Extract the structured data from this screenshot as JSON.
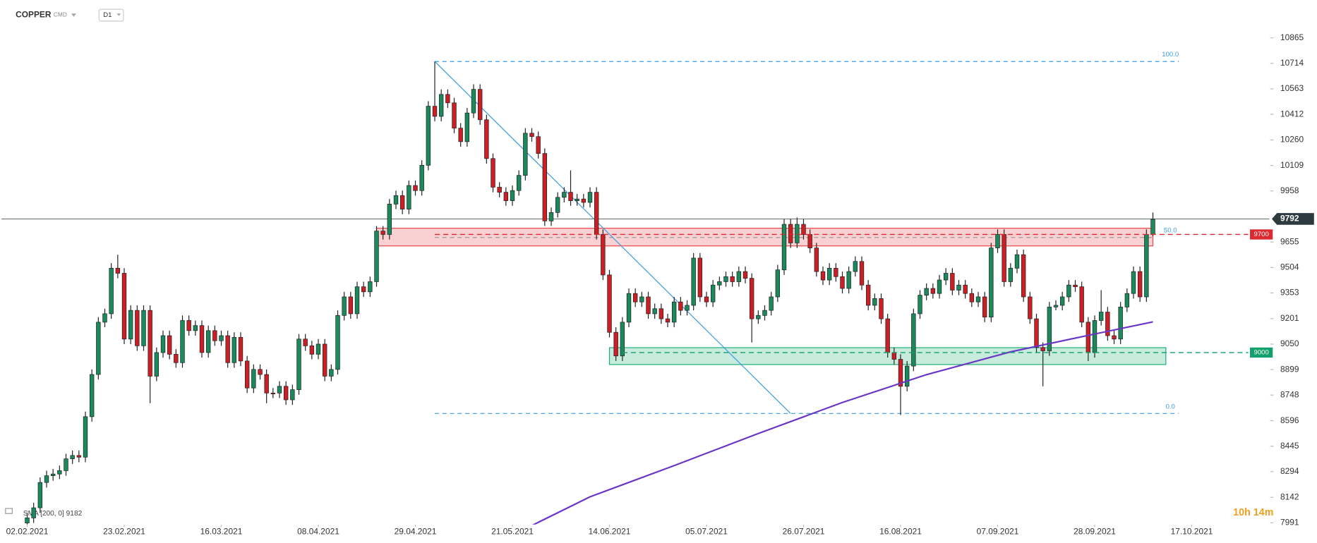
{
  "chart_data": {
    "type": "candlestick",
    "title": "COPPER",
    "market": "CMD",
    "timeframe": "D1",
    "countdown": "10h 14m",
    "up_color": "#1a8a5c",
    "down_color": "#cc1f25",
    "xlim": [
      -4,
      192
    ],
    "ylim": [
      7991,
      10865
    ],
    "xticks": [
      {
        "value": 0,
        "label": "02.02.2021"
      },
      {
        "value": 15,
        "label": "23.02.2021"
      },
      {
        "value": 30,
        "label": "16.03.2021"
      },
      {
        "value": 45,
        "label": "08.04.2021"
      },
      {
        "value": 60,
        "label": "29.04.2021"
      },
      {
        "value": 75,
        "label": "21.05.2021"
      },
      {
        "value": 90,
        "label": "14.06.2021"
      },
      {
        "value": 105,
        "label": "05.07.2021"
      },
      {
        "value": 120,
        "label": "26.07.2021"
      },
      {
        "value": 135,
        "label": "16.08.2021"
      },
      {
        "value": 150,
        "label": "07.09.2021"
      },
      {
        "value": 165,
        "label": "28.09.2021"
      },
      {
        "value": 180,
        "label": "17.10.2021"
      }
    ],
    "yticks": [
      10865,
      10714,
      10563,
      10412,
      10260,
      10109,
      9958,
      9655,
      9504,
      9353,
      9201,
      9050,
      8899,
      8748,
      8596,
      8445,
      8294,
      8142,
      7991
    ],
    "ohlc": [
      [
        7990,
        8050,
        7960,
        8020
      ],
      [
        8020,
        8110,
        7990,
        8080
      ],
      [
        8080,
        8260,
        8050,
        8230
      ],
      [
        8230,
        8300,
        8200,
        8270
      ],
      [
        8270,
        8310,
        8240,
        8280
      ],
      [
        8280,
        8330,
        8250,
        8300
      ],
      [
        8300,
        8400,
        8270,
        8370
      ],
      [
        8370,
        8420,
        8340,
        8390
      ],
      [
        8390,
        8420,
        8350,
        8380
      ],
      [
        8380,
        8650,
        8350,
        8620
      ],
      [
        8620,
        8900,
        8590,
        8870
      ],
      [
        8870,
        9210,
        8840,
        9180
      ],
      [
        9180,
        9260,
        9150,
        9230
      ],
      [
        9230,
        9530,
        9200,
        9500
      ],
      [
        9500,
        9580,
        9440,
        9470
      ],
      [
        9470,
        9500,
        9050,
        9080
      ],
      [
        9080,
        9280,
        9050,
        9250
      ],
      [
        9250,
        9280,
        9010,
        9040
      ],
      [
        9040,
        9280,
        9010,
        9250
      ],
      [
        9250,
        9280,
        8700,
        8860
      ],
      [
        8860,
        9030,
        8830,
        9000
      ],
      [
        9000,
        9130,
        8970,
        9100
      ],
      [
        9100,
        9130,
        8960,
        8990
      ],
      [
        8990,
        9020,
        8910,
        8940
      ],
      [
        8940,
        9220,
        8910,
        9190
      ],
      [
        9190,
        9220,
        9100,
        9130
      ],
      [
        9130,
        9190,
        9100,
        9160
      ],
      [
        9160,
        9190,
        8970,
        9000
      ],
      [
        9000,
        9160,
        8970,
        9130
      ],
      [
        9130,
        9160,
        9040,
        9070
      ],
      [
        9070,
        9130,
        9040,
        9100
      ],
      [
        9100,
        9130,
        8910,
        8940
      ],
      [
        8940,
        9120,
        8910,
        9090
      ],
      [
        9090,
        9120,
        8920,
        8950
      ],
      [
        8950,
        8980,
        8760,
        8790
      ],
      [
        8790,
        8930,
        8760,
        8900
      ],
      [
        8900,
        8930,
        8840,
        8870
      ],
      [
        8870,
        8900,
        8700,
        8760
      ],
      [
        8760,
        8790,
        8730,
        8760
      ],
      [
        8760,
        8830,
        8730,
        8800
      ],
      [
        8800,
        8830,
        8690,
        8720
      ],
      [
        8720,
        8810,
        8690,
        8780
      ],
      [
        8780,
        9110,
        8750,
        9080
      ],
      [
        9080,
        9110,
        9010,
        9040
      ],
      [
        9040,
        9070,
        8960,
        8990
      ],
      [
        8990,
        9080,
        8960,
        9050
      ],
      [
        9050,
        9080,
        8830,
        8860
      ],
      [
        8860,
        8930,
        8830,
        8900
      ],
      [
        8900,
        9250,
        8870,
        9220
      ],
      [
        9220,
        9360,
        9190,
        9330
      ],
      [
        9330,
        9360,
        9200,
        9230
      ],
      [
        9230,
        9420,
        9200,
        9390
      ],
      [
        9390,
        9420,
        9330,
        9360
      ],
      [
        9360,
        9450,
        9330,
        9420
      ],
      [
        9420,
        9750,
        9390,
        9720
      ],
      [
        9720,
        9750,
        9670,
        9700
      ],
      [
        9700,
        9910,
        9670,
        9880
      ],
      [
        9880,
        9960,
        9850,
        9930
      ],
      [
        9930,
        9960,
        9820,
        9850
      ],
      [
        9850,
        10020,
        9820,
        9990
      ],
      [
        9990,
        10020,
        9930,
        9960
      ],
      [
        9960,
        10140,
        9930,
        10110
      ],
      [
        10110,
        10490,
        10080,
        10460
      ],
      [
        10460,
        10725,
        10370,
        10400
      ],
      [
        10400,
        10560,
        10370,
        10530
      ],
      [
        10530,
        10560,
        10450,
        10480
      ],
      [
        10480,
        10510,
        10300,
        10330
      ],
      [
        10330,
        10360,
        10220,
        10250
      ],
      [
        10250,
        10450,
        10220,
        10420
      ],
      [
        10420,
        10590,
        10390,
        10560
      ],
      [
        10560,
        10590,
        10350,
        10380
      ],
      [
        10380,
        10410,
        10120,
        10150
      ],
      [
        10150,
        10180,
        9950,
        9980
      ],
      [
        9980,
        10010,
        9920,
        9950
      ],
      [
        9950,
        9980,
        9870,
        9900
      ],
      [
        9900,
        9990,
        9870,
        9960
      ],
      [
        9960,
        10080,
        9930,
        10050
      ],
      [
        10050,
        10330,
        10020,
        10300
      ],
      [
        10300,
        10330,
        10250,
        10280
      ],
      [
        10280,
        10310,
        10150,
        10180
      ],
      [
        10180,
        10210,
        9750,
        9780
      ],
      [
        9780,
        9860,
        9750,
        9830
      ],
      [
        9830,
        9950,
        9800,
        9920
      ],
      [
        9920,
        9980,
        9890,
        9950
      ],
      [
        9950,
        10080,
        9870,
        9900
      ],
      [
        9900,
        9940,
        9870,
        9910
      ],
      [
        9910,
        9940,
        9860,
        9890
      ],
      [
        9890,
        9980,
        9860,
        9950
      ],
      [
        9950,
        9980,
        9670,
        9700
      ],
      [
        9700,
        9730,
        9430,
        9460
      ],
      [
        9460,
        9490,
        9090,
        9120
      ],
      [
        9120,
        9150,
        8950,
        8980
      ],
      [
        8980,
        9210,
        8950,
        9180
      ],
      [
        9180,
        9380,
        9150,
        9350
      ],
      [
        9350,
        9380,
        9270,
        9300
      ],
      [
        9300,
        9360,
        9270,
        9330
      ],
      [
        9330,
        9360,
        9200,
        9230
      ],
      [
        9230,
        9290,
        9200,
        9260
      ],
      [
        9260,
        9290,
        9170,
        9200
      ],
      [
        9200,
        9230,
        9150,
        9180
      ],
      [
        9180,
        9330,
        9150,
        9300
      ],
      [
        9300,
        9330,
        9220,
        9250
      ],
      [
        9250,
        9310,
        9220,
        9280
      ],
      [
        9280,
        9590,
        9250,
        9560
      ],
      [
        9560,
        9590,
        9300,
        9330
      ],
      [
        9330,
        9360,
        9270,
        9300
      ],
      [
        9300,
        9430,
        9270,
        9400
      ],
      [
        9400,
        9450,
        9370,
        9420
      ],
      [
        9420,
        9480,
        9390,
        9450
      ],
      [
        9450,
        9480,
        9390,
        9420
      ],
      [
        9420,
        9510,
        9390,
        9480
      ],
      [
        9480,
        9510,
        9410,
        9440
      ],
      [
        9440,
        9470,
        9060,
        9200
      ],
      [
        9200,
        9250,
        9170,
        9220
      ],
      [
        9220,
        9280,
        9190,
        9250
      ],
      [
        9250,
        9360,
        9220,
        9330
      ],
      [
        9330,
        9520,
        9300,
        9490
      ],
      [
        9490,
        9790,
        9460,
        9760
      ],
      [
        9760,
        9790,
        9620,
        9650
      ],
      [
        9650,
        9800,
        9620,
        9760
      ],
      [
        9760,
        9790,
        9670,
        9700
      ],
      [
        9700,
        9730,
        9590,
        9620
      ],
      [
        9620,
        9650,
        9450,
        9480
      ],
      [
        9480,
        9510,
        9400,
        9430
      ],
      [
        9430,
        9530,
        9400,
        9500
      ],
      [
        9500,
        9530,
        9420,
        9450
      ],
      [
        9450,
        9480,
        9350,
        9380
      ],
      [
        9380,
        9510,
        9350,
        9480
      ],
      [
        9480,
        9570,
        9450,
        9540
      ],
      [
        9540,
        9570,
        9370,
        9400
      ],
      [
        9400,
        9430,
        9250,
        9280
      ],
      [
        9280,
        9350,
        9250,
        9320
      ],
      [
        9320,
        9350,
        9170,
        9200
      ],
      [
        9200,
        9230,
        8970,
        9000
      ],
      [
        9000,
        9030,
        8930,
        8960
      ],
      [
        8960,
        8990,
        8630,
        8800
      ],
      [
        8800,
        8950,
        8770,
        8920
      ],
      [
        8920,
        9260,
        8890,
        9230
      ],
      [
        9230,
        9370,
        9200,
        9340
      ],
      [
        9340,
        9410,
        9310,
        9380
      ],
      [
        9380,
        9410,
        9320,
        9350
      ],
      [
        9350,
        9460,
        9320,
        9430
      ],
      [
        9430,
        9500,
        9400,
        9470
      ],
      [
        9470,
        9500,
        9340,
        9370
      ],
      [
        9370,
        9430,
        9340,
        9400
      ],
      [
        9400,
        9430,
        9320,
        9350
      ],
      [
        9350,
        9380,
        9270,
        9300
      ],
      [
        9300,
        9360,
        9270,
        9330
      ],
      [
        9330,
        9360,
        9180,
        9210
      ],
      [
        9210,
        9650,
        9180,
        9620
      ],
      [
        9620,
        9730,
        9590,
        9700
      ],
      [
        9700,
        9730,
        9390,
        9420
      ],
      [
        9420,
        9530,
        9390,
        9500
      ],
      [
        9500,
        9610,
        9470,
        9580
      ],
      [
        9580,
        9610,
        9300,
        9330
      ],
      [
        9330,
        9360,
        9170,
        9200
      ],
      [
        9200,
        9230,
        9000,
        9030
      ],
      [
        9030,
        9060,
        8800,
        9010
      ],
      [
        9010,
        9300,
        8980,
        9270
      ],
      [
        9270,
        9310,
        9250,
        9280
      ],
      [
        9280,
        9360,
        9250,
        9330
      ],
      [
        9330,
        9430,
        9300,
        9400
      ],
      [
        9400,
        9430,
        9360,
        9390
      ],
      [
        9390,
        9420,
        9150,
        9180
      ],
      [
        9180,
        9210,
        8950,
        9000
      ],
      [
        9000,
        9220,
        8970,
        9190
      ],
      [
        9190,
        9370,
        9160,
        9240
      ],
      [
        9240,
        9270,
        9070,
        9100
      ],
      [
        9100,
        9130,
        9050,
        9080
      ],
      [
        9080,
        9300,
        9050,
        9270
      ],
      [
        9270,
        9380,
        9240,
        9350
      ],
      [
        9350,
        9510,
        9320,
        9480
      ],
      [
        9480,
        9510,
        9300,
        9330
      ],
      [
        9330,
        9730,
        9300,
        9700
      ],
      [
        9700,
        9830,
        9690,
        9790
      ]
    ],
    "sma": {
      "name": "SMA [200, 0]",
      "color": "#6a35c4",
      "x": [
        77,
        87,
        100,
        113,
        126,
        139,
        152,
        165,
        174
      ],
      "values": [
        7956,
        8145,
        8330,
        8520,
        8704,
        8869,
        9004,
        9110,
        9182
      ]
    },
    "trendline": {
      "color": "#3a9be0",
      "x": [
        63,
        118
      ],
      "values": [
        10725,
        8639
      ]
    },
    "fibonacci": [
      {
        "label": "100.0",
        "value": 10725
      },
      {
        "label": "50.0",
        "value": 9682
      },
      {
        "label": "0.0",
        "value": 8639
      }
    ],
    "fib_x": [
      63,
      178
    ],
    "zones": [
      {
        "color": "#e8474b",
        "x": [
          54,
          174
        ],
        "values": [
          9737,
          9632
        ]
      },
      {
        "color": "#1fae74",
        "x": [
          90,
          176
        ],
        "values": [
          9029,
          8929
        ]
      }
    ],
    "levels": [
      {
        "value": 9700,
        "color": "#dd2a30",
        "x": 63
      },
      {
        "value": 9000,
        "color": "#12a06c",
        "x": 92
      }
    ],
    "last_price": 9792
  }
}
